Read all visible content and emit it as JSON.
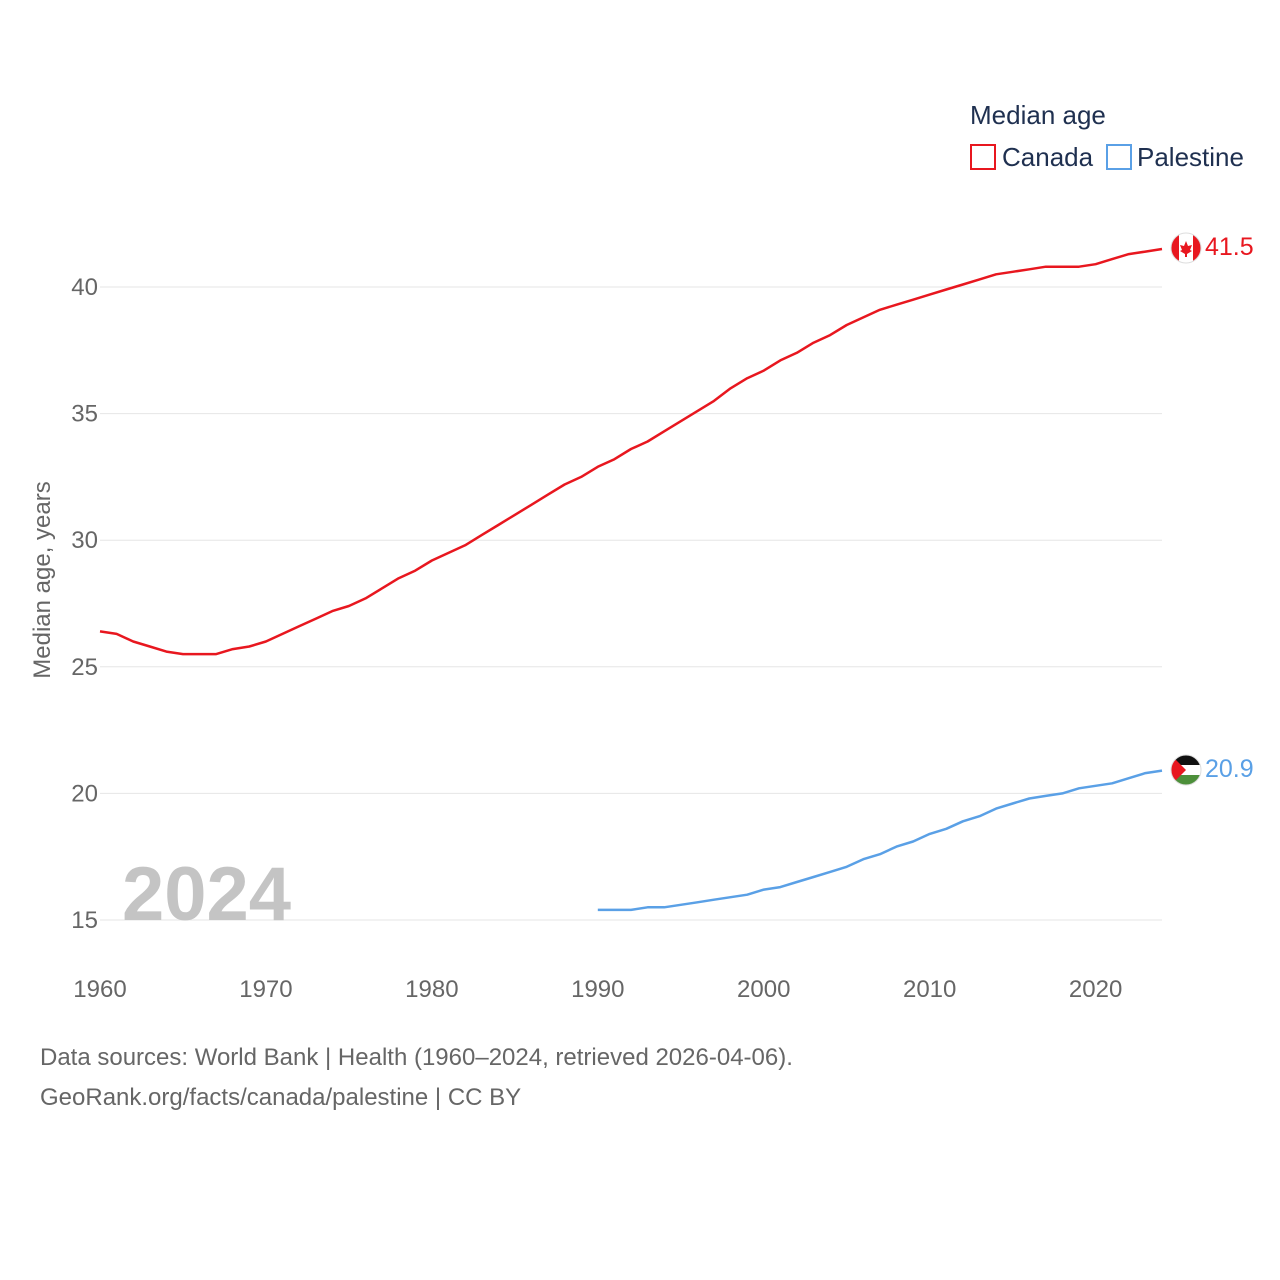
{
  "chart_data": {
    "type": "line",
    "legend": {
      "title": "Median age",
      "position": "top-right"
    },
    "ylabel": "Median age, years",
    "xlabel": "",
    "ylim": [
      13,
      43
    ],
    "xlim": [
      1960,
      2024
    ],
    "y_ticks": [
      15,
      20,
      25,
      30,
      35,
      40
    ],
    "y_tick_labels": [
      "15",
      "20",
      "25",
      "30",
      "35",
      "40"
    ],
    "x_ticks": [
      1960,
      1970,
      1980,
      1990,
      2000,
      2010,
      2020
    ],
    "x_tick_labels": [
      "1960",
      "1970",
      "1980",
      "1990",
      "2000",
      "2010",
      "2020"
    ],
    "grid": true,
    "current_year_label": "2024",
    "series": [
      {
        "name": "Canada",
        "color": "#e8171f",
        "end_label": "41.5",
        "flag": "canada-flag",
        "x": [
          1960,
          1961,
          1962,
          1963,
          1964,
          1965,
          1966,
          1967,
          1968,
          1969,
          1970,
          1971,
          1972,
          1973,
          1974,
          1975,
          1976,
          1977,
          1978,
          1979,
          1980,
          1981,
          1982,
          1983,
          1984,
          1985,
          1986,
          1987,
          1988,
          1989,
          1990,
          1991,
          1992,
          1993,
          1994,
          1995,
          1996,
          1997,
          1998,
          1999,
          2000,
          2001,
          2002,
          2003,
          2004,
          2005,
          2006,
          2007,
          2008,
          2009,
          2010,
          2011,
          2012,
          2013,
          2014,
          2015,
          2016,
          2017,
          2018,
          2019,
          2020,
          2021,
          2022,
          2023,
          2024
        ],
        "values": [
          26.4,
          26.3,
          26.0,
          25.8,
          25.6,
          25.5,
          25.5,
          25.5,
          25.7,
          25.8,
          26.0,
          26.3,
          26.6,
          26.9,
          27.2,
          27.4,
          27.7,
          28.1,
          28.5,
          28.8,
          29.2,
          29.5,
          29.8,
          30.2,
          30.6,
          31.0,
          31.4,
          31.8,
          32.2,
          32.5,
          32.9,
          33.2,
          33.6,
          33.9,
          34.3,
          34.7,
          35.1,
          35.5,
          36.0,
          36.4,
          36.7,
          37.1,
          37.4,
          37.8,
          38.1,
          38.5,
          38.8,
          39.1,
          39.3,
          39.5,
          39.7,
          39.9,
          40.1,
          40.3,
          40.5,
          40.6,
          40.7,
          40.8,
          40.8,
          40.8,
          40.9,
          41.1,
          41.3,
          41.4,
          41.5
        ]
      },
      {
        "name": "Palestine",
        "color": "#5aa0e6",
        "end_label": "20.9",
        "flag": "palestine-flag",
        "x": [
          1990,
          1991,
          1992,
          1993,
          1994,
          1995,
          1996,
          1997,
          1998,
          1999,
          2000,
          2001,
          2002,
          2003,
          2004,
          2005,
          2006,
          2007,
          2008,
          2009,
          2010,
          2011,
          2012,
          2013,
          2014,
          2015,
          2016,
          2017,
          2018,
          2019,
          2020,
          2021,
          2022,
          2023,
          2024
        ],
        "values": [
          15.4,
          15.4,
          15.4,
          15.5,
          15.5,
          15.6,
          15.7,
          15.8,
          15.9,
          16.0,
          16.2,
          16.3,
          16.5,
          16.7,
          16.9,
          17.1,
          17.4,
          17.6,
          17.9,
          18.1,
          18.4,
          18.6,
          18.9,
          19.1,
          19.4,
          19.6,
          19.8,
          19.9,
          20.0,
          20.2,
          20.3,
          20.4,
          20.6,
          20.8,
          20.9
        ]
      }
    ]
  },
  "footer": {
    "source": "Data sources: World Bank | Health (1960–2024, retrieved 2026-04-06).",
    "credit": "GeoRank.org/facts/canada/palestine | CC BY"
  }
}
